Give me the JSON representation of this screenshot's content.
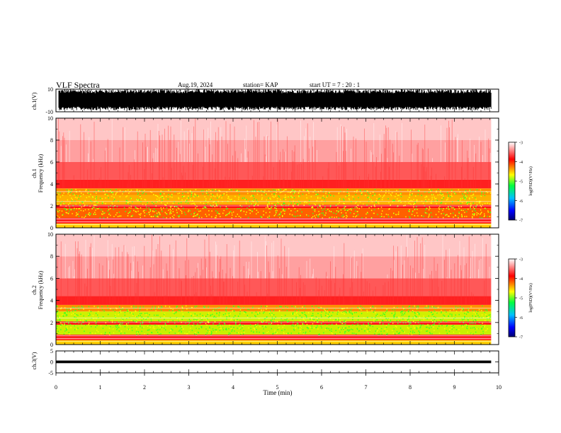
{
  "header": {
    "title": "VLF Spectra",
    "date": "Aug.19, 2024",
    "station": "station= KAP",
    "start": "start  UT  =   7 : 20 : 1"
  },
  "chart_data": [
    {
      "panel": "ch1-waveform",
      "type": "line",
      "ylabel": "ch.1(V)",
      "ylim": [
        -10,
        10
      ],
      "ytick_labels": [
        "10",
        "-10"
      ],
      "xlim": [
        0,
        10
      ],
      "data_extent_x": [
        0,
        9.83
      ]
    },
    {
      "panel": "ch1-spectrogram",
      "type": "heatmap",
      "ylabel_line1": "ch.1",
      "ylabel_line2": "Frequency  (kHz)",
      "ylim": [
        0,
        10
      ],
      "ytick_labels": [
        "0",
        "2",
        "4",
        "6",
        "8",
        "10"
      ],
      "xlim": [
        0,
        10
      ],
      "data_extent_x": [
        0,
        9.83
      ],
      "colorbar": {
        "label": "log(PSD)(V²/Hz)",
        "range": [
          -7,
          -3
        ],
        "tick_labels": [
          "-3",
          "-4",
          "-5",
          "-6",
          "-7"
        ]
      }
    },
    {
      "panel": "ch2-spectrogram",
      "type": "heatmap",
      "ylabel_line1": "ch.2",
      "ylabel_line2": "Frequency  (kHz)",
      "ylim": [
        0,
        10
      ],
      "ytick_labels": [
        "0",
        "2",
        "4",
        "6",
        "8",
        "10"
      ],
      "xlim": [
        0,
        10
      ],
      "data_extent_x": [
        0,
        9.83
      ],
      "colorbar": {
        "label": "log(PSD)(V²/Hz)",
        "range": [
          -7,
          -3
        ],
        "tick_labels": [
          "-3",
          "-4",
          "-5",
          "-6",
          "-7"
        ]
      }
    },
    {
      "panel": "ch3-waveform",
      "type": "line",
      "ylabel": "ch.3(V)",
      "ylim": [
        -5,
        5
      ],
      "ytick_labels": [
        "5",
        "0",
        "-5"
      ],
      "xlim": [
        0,
        10
      ],
      "data_extent_x": [
        0,
        9.83
      ],
      "xlabel": "Time  (min)",
      "xtick_labels": [
        "0",
        "1",
        "2",
        "3",
        "4",
        "5",
        "6",
        "7",
        "8",
        "9",
        "10"
      ]
    }
  ],
  "colors": {
    "colormap": [
      "#000070",
      "#0000ff",
      "#00c0ff",
      "#00ff60",
      "#c0ff00",
      "#ffff00",
      "#ff0000",
      "#ffffff"
    ]
  }
}
